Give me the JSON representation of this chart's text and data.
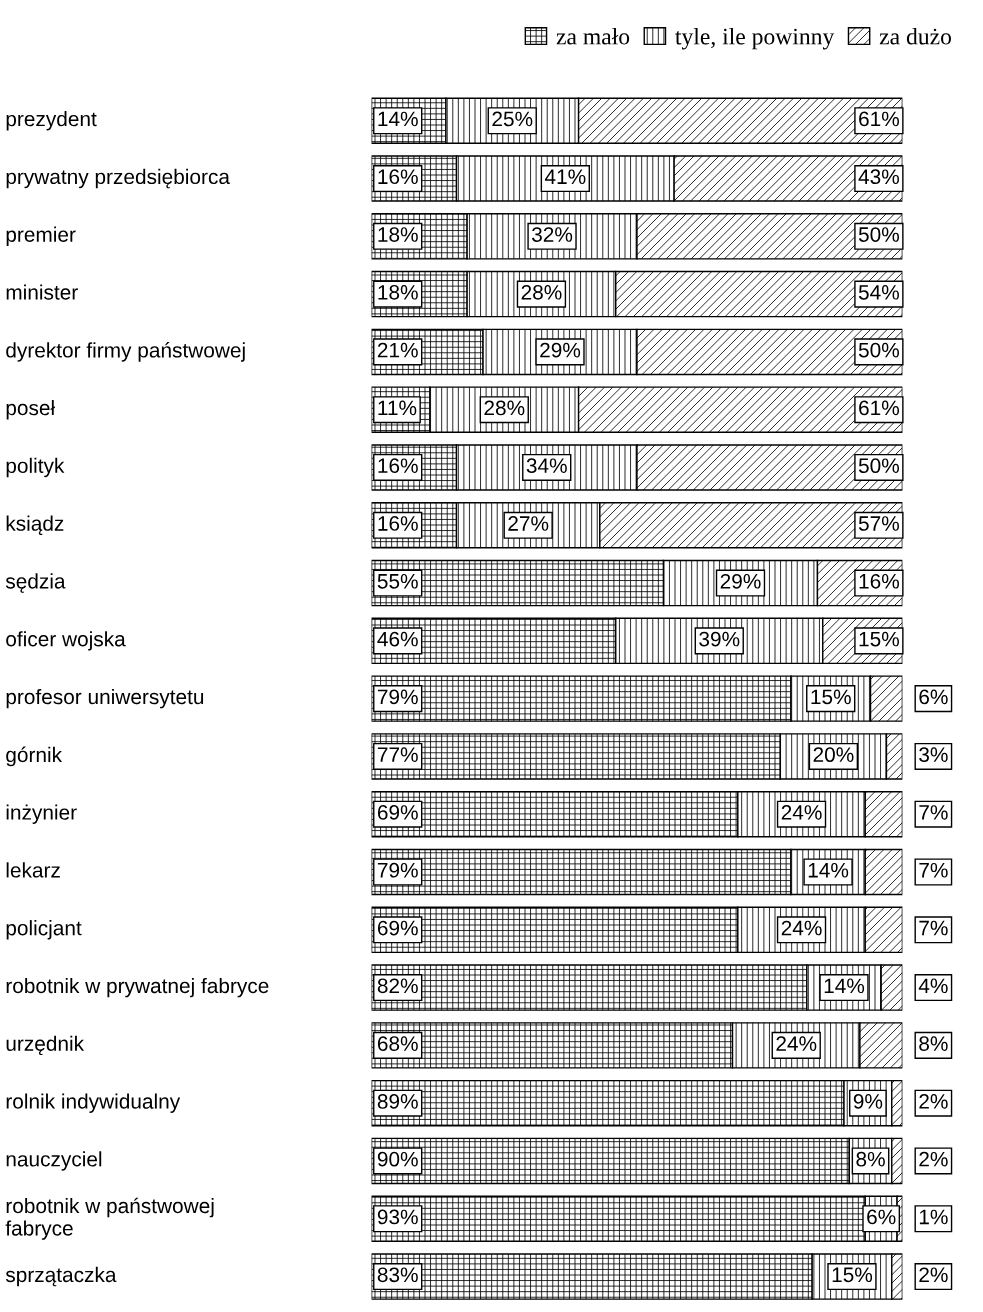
{
  "chart_data": {
    "type": "bar",
    "orientation": "horizontal",
    "stacked": true,
    "legend": "top right",
    "xlim": [
      0,
      100
    ],
    "categories": [
      "prezydent",
      "prywatny przedsiębiorca",
      "premier",
      "minister",
      "dyrektor firmy państwowej",
      "poseł",
      "polityk",
      "ksiądz",
      "sędzia",
      "oficer wojska",
      "profesor uniwersytetu",
      "górnik",
      "inżynier",
      "lekarz",
      "policjant",
      "robotnik w prywatnej fabryce",
      "urzędnik",
      "rolnik indywidualny",
      "nauczyciel",
      "robotnik w państwowej\nfabryce",
      "sprzątaczka"
    ],
    "series": [
      {
        "name": "za mało",
        "color": "#000000",
        "values": [
          14,
          16,
          18,
          18,
          21,
          11,
          16,
          16,
          55,
          46,
          79,
          77,
          69,
          79,
          69,
          82,
          68,
          89,
          90,
          93,
          83
        ],
        "value_labels": [
          "14%",
          "16%",
          "18%",
          "18%",
          "21%",
          "11%",
          "16%",
          "16%",
          "55%",
          "46%",
          "79%",
          "77%",
          "69%",
          "79%",
          "69%",
          "82%",
          "68%",
          "89%",
          "90%",
          "93%",
          "83%"
        ]
      },
      {
        "name": "tyle, ile powinny",
        "color": "#000000",
        "values": [
          25,
          41,
          32,
          28,
          29,
          28,
          34,
          27,
          29,
          39,
          15,
          20,
          24,
          14,
          24,
          14,
          24,
          9,
          8,
          6,
          15
        ],
        "value_labels": [
          "25%",
          "41%",
          "32%",
          "28%",
          "29%",
          "28%",
          "34%",
          "27%",
          "29%",
          "39%",
          "15%",
          "20%",
          "24%",
          "14%",
          "24%",
          "14%",
          "24%",
          "9%",
          "8%",
          "6%",
          "15%"
        ]
      },
      {
        "name": "za dużo",
        "color": "#000000",
        "values": [
          61,
          43,
          50,
          54,
          50,
          61,
          50,
          57,
          16,
          15,
          6,
          3,
          7,
          7,
          7,
          4,
          8,
          2,
          2,
          1,
          2
        ],
        "value_labels": [
          "61%",
          "43%",
          "50%",
          "54%",
          "50%",
          "61%",
          "50%",
          "57%",
          "16%",
          "15%",
          "6%",
          "3%",
          "7%",
          "7%",
          "7%",
          "4%",
          "8%",
          "2%",
          "2%",
          "1%",
          "2%"
        ]
      }
    ]
  }
}
